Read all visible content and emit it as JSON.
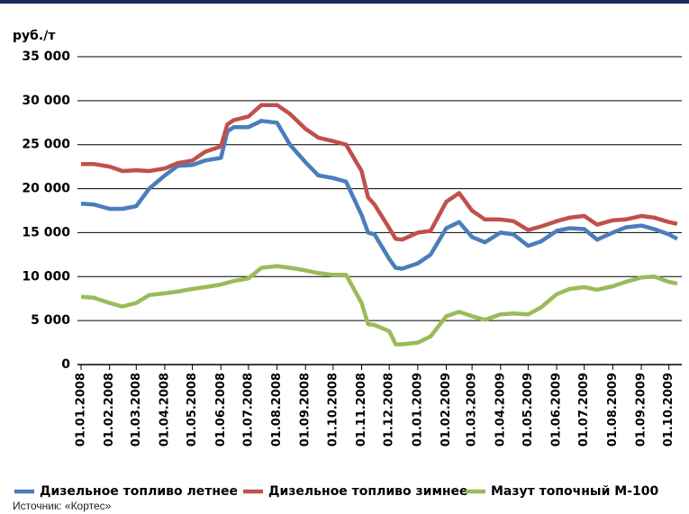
{
  "chart_data": {
    "type": "line",
    "ylabel": "руб./т",
    "source": "Источник: «Кортес»",
    "x": [
      "01.01.2008",
      "15.01.2008",
      "01.02.2008",
      "15.02.2008",
      "01.03.2008",
      "15.03.2008",
      "01.04.2008",
      "15.04.2008",
      "01.05.2008",
      "15.05.2008",
      "01.06.2008",
      "08.06.2008",
      "15.06.2008",
      "01.07.2008",
      "15.07.2008",
      "01.08.2008",
      "15.08.2008",
      "01.09.2008",
      "15.09.2008",
      "01.10.2008",
      "15.10.2008",
      "01.11.2008",
      "08.11.2008",
      "15.11.2008",
      "01.12.2008",
      "08.12.2008",
      "15.12.2008",
      "01.01.2009",
      "15.01.2009",
      "01.02.2009",
      "15.02.2009",
      "01.03.2009",
      "15.03.2009",
      "01.04.2009",
      "15.04.2009",
      "01.05.2009",
      "15.05.2009",
      "01.06.2009",
      "15.06.2009",
      "01.07.2009",
      "15.07.2009",
      "01.08.2009",
      "15.08.2009",
      "01.09.2009",
      "15.09.2009",
      "01.10.2009",
      "10.10.2009"
    ],
    "series": [
      {
        "name": "Дизельное топливо летнее",
        "color": "#4a7ebb",
        "values": [
          18300,
          18200,
          17700,
          17700,
          18000,
          20000,
          21500,
          22600,
          22700,
          23200,
          23500,
          26500,
          27000,
          27000,
          27700,
          27500,
          25000,
          23000,
          21500,
          21200,
          20800,
          17000,
          15000,
          14800,
          12000,
          11000,
          10900,
          11500,
          12500,
          15500,
          16200,
          14500,
          13900,
          15000,
          14800,
          13500,
          14000,
          15200,
          15500,
          15400,
          14200,
          15000,
          15600,
          15800,
          15400,
          14800,
          14300
        ]
      },
      {
        "name": "Дизельное топливо зимнее",
        "color": "#c0504d",
        "values": [
          22800,
          22800,
          22500,
          22000,
          22100,
          22000,
          22300,
          22900,
          23200,
          24200,
          24800,
          27300,
          27800,
          28200,
          29500,
          29500,
          28500,
          26800,
          25800,
          25400,
          25000,
          22000,
          19000,
          18200,
          15500,
          14300,
          14200,
          15000,
          15200,
          18500,
          19500,
          17500,
          16500,
          16500,
          16300,
          15300,
          15700,
          16300,
          16700,
          16900,
          15900,
          16400,
          16500,
          16900,
          16700,
          16200,
          16000
        ]
      },
      {
        "name": "Мазут топочный М-100",
        "color": "#9bbb59",
        "values": [
          7700,
          7600,
          7000,
          6600,
          7000,
          7900,
          8100,
          8300,
          8600,
          8800,
          9100,
          9300,
          9500,
          9800,
          11000,
          11200,
          11000,
          10700,
          10400,
          10200,
          10200,
          7000,
          4600,
          4500,
          3800,
          2300,
          2300,
          2500,
          3200,
          5500,
          6000,
          5500,
          5100,
          5700,
          5800,
          5700,
          6500,
          8000,
          8600,
          8800,
          8500,
          8900,
          9400,
          9900,
          10000,
          9400,
          9200
        ]
      }
    ],
    "xlim": [
      "01.01.2008",
      "15.10.2009"
    ],
    "xticks": [
      "01.01.2008",
      "01.02.2008",
      "01.03.2008",
      "01.04.2008",
      "01.05.2008",
      "01.06.2008",
      "01.07.2008",
      "01.08.2008",
      "01.09.2008",
      "01.10.2008",
      "01.11.2008",
      "01.12.2008",
      "01.01.2009",
      "01.02.2009",
      "01.03.2009",
      "01.04.2009",
      "01.05.2009",
      "01.06.2009",
      "01.07.2009",
      "01.08.2009",
      "01.09.2009",
      "01.10.2009"
    ],
    "ylim": [
      0,
      35000
    ],
    "yticks": [
      0,
      {
        "value": 5000,
        "label": "5 000"
      },
      {
        "value": 10000,
        "label": "10 000"
      },
      {
        "value": 15000,
        "label": "15 000"
      },
      {
        "value": 20000,
        "label": "20 000"
      },
      {
        "value": 25000,
        "label": "25 000"
      },
      {
        "value": 30000,
        "label": "30 000"
      },
      {
        "value": 35000,
        "label": "35 000"
      }
    ],
    "grid": true
  }
}
